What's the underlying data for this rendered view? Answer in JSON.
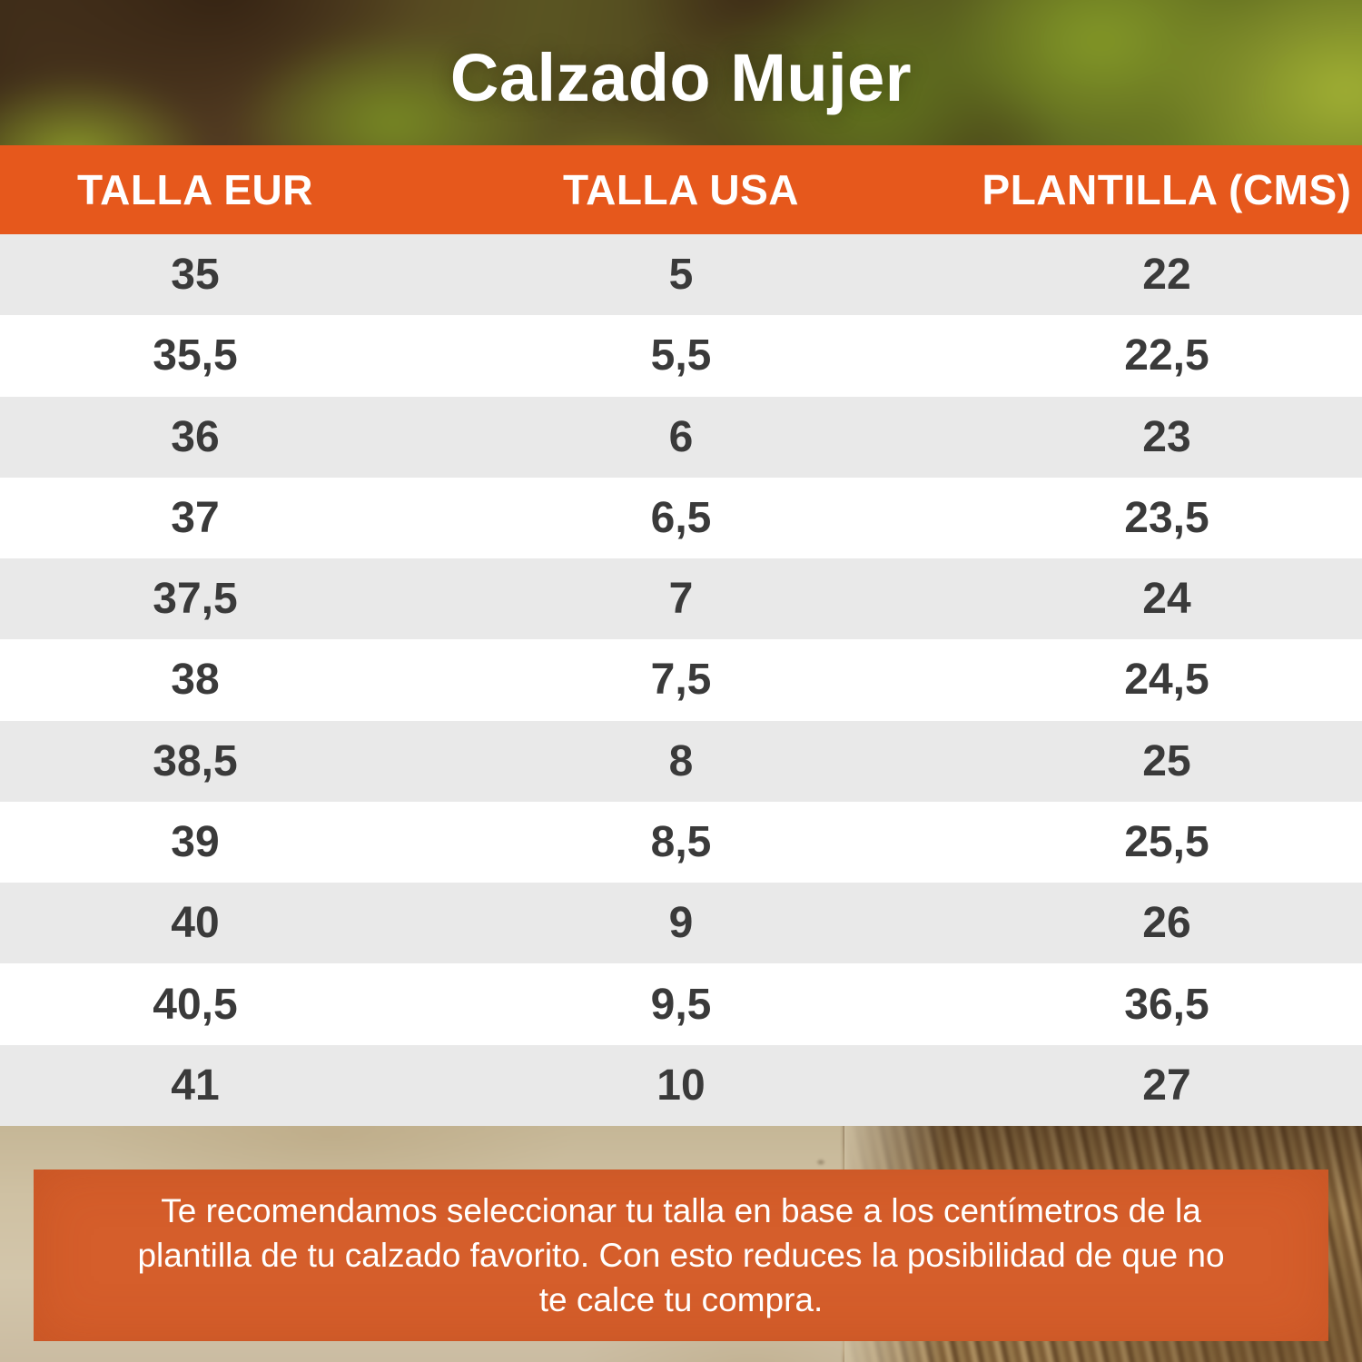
{
  "chart_data": {
    "type": "table",
    "title": "Calzado Mujer",
    "columns": [
      "TALLA EUR",
      "TALLA USA",
      "PLANTILLA (CMS)"
    ],
    "rows": [
      [
        "35",
        "5",
        "22"
      ],
      [
        "35,5",
        "5,5",
        "22,5"
      ],
      [
        "36",
        "6",
        "23"
      ],
      [
        "37",
        "6,5",
        "23,5"
      ],
      [
        "37,5",
        "7",
        "24"
      ],
      [
        "38",
        "7,5",
        "24,5"
      ],
      [
        "38,5",
        "8",
        "25"
      ],
      [
        "39",
        "8,5",
        "25,5"
      ],
      [
        "40",
        "9",
        "26"
      ],
      [
        "40,5",
        "9,5",
        "36,5"
      ],
      [
        "41",
        "10",
        "27"
      ]
    ],
    "note": "Te recomendamos seleccionar tu talla en base a los centímetros de la plantilla de tu calzado favorito. Con esto reduces la posibilidad de que no te calce tu compra."
  },
  "colors": {
    "accent-orange": "#E6581C",
    "footer-orange": "#D55E2B",
    "row-alt": "#E9E9E9",
    "row-text": "#3A3A3A",
    "header-text": "#FFFFFF"
  }
}
